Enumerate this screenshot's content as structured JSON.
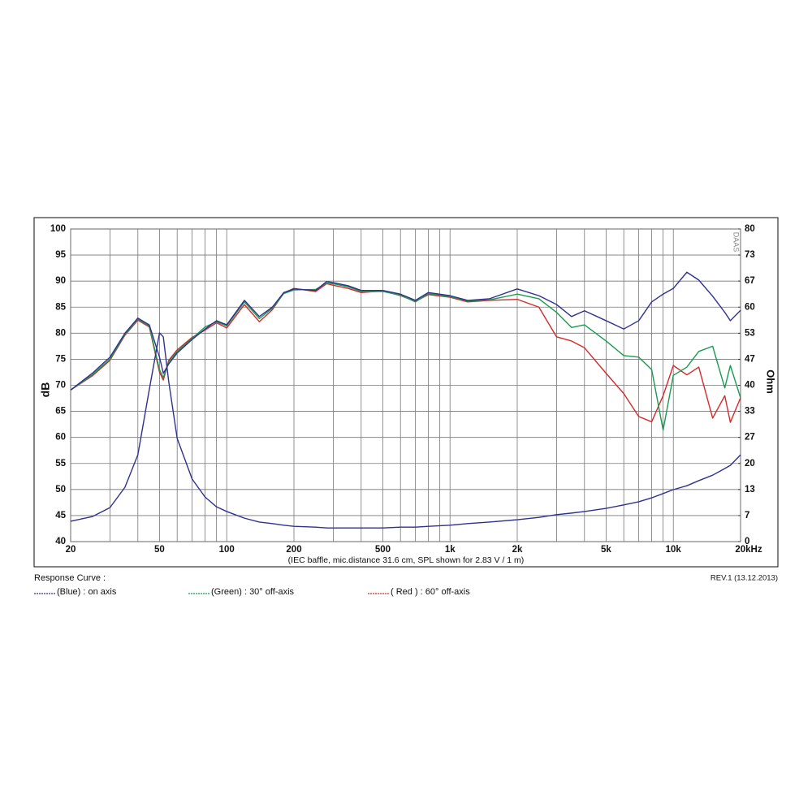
{
  "chart_data": {
    "type": "line",
    "y_label": "dB",
    "y2_label": "Ohm",
    "watermark": "DAAS",
    "note": "(IEC baffle, mic.distance 31.6 cm, SPL shown for 2.83 V / 1 m)",
    "legend_title": "Response Curve :",
    "revision": "REV.1 (13.12.2013)",
    "xscale": "log",
    "grid": true,
    "xlim": [
      20,
      20000
    ],
    "xticks": [
      20,
      50,
      100,
      200,
      500,
      {
        "value": 1000,
        "label": "1k"
      },
      {
        "value": 2000,
        "label": "2k"
      },
      {
        "value": 5000,
        "label": "5k"
      },
      {
        "value": 10000,
        "label": "10k"
      },
      {
        "value": 20000,
        "label": "20kHz"
      }
    ],
    "xgrid": [
      30,
      40,
      60,
      70,
      80,
      90,
      300,
      400,
      600,
      700,
      800,
      900,
      3000,
      4000,
      6000,
      7000,
      8000,
      9000
    ],
    "ylim": [
      40,
      100
    ],
    "yticks": [
      40,
      45,
      50,
      55,
      60,
      65,
      70,
      75,
      80,
      85,
      90,
      95,
      100
    ],
    "y2lim": [
      0,
      80
    ],
    "y2ticks": [
      0,
      {
        "value": 6.667,
        "label": "7"
      },
      {
        "value": 13.333,
        "label": "13"
      },
      20,
      {
        "value": 26.667,
        "label": "27"
      },
      {
        "value": 33.333,
        "label": "33"
      },
      40,
      {
        "value": 46.667,
        "label": "47"
      },
      {
        "value": 53.333,
        "label": "53"
      },
      60,
      {
        "value": 66.667,
        "label": "67"
      },
      {
        "value": 73.333,
        "label": "73"
      },
      80
    ],
    "x": [
      20,
      25,
      30,
      35,
      40,
      45,
      50,
      52,
      55,
      60,
      70,
      80,
      90,
      100,
      120,
      140,
      160,
      180,
      200,
      250,
      280,
      300,
      350,
      400,
      500,
      600,
      700,
      800,
      1000,
      1200,
      1500,
      2000,
      2500,
      3000,
      3500,
      4000,
      5000,
      6000,
      7000,
      8000,
      9000,
      10000,
      11500,
      13000,
      15000,
      17000,
      18000,
      20000
    ],
    "series": [
      {
        "name": "(Blue)  : on axis",
        "color": "#2e3192",
        "values": [
          69.1,
          72.3,
          75.4,
          80,
          82.9,
          81.6,
          75.4,
          72.3,
          74.1,
          76.2,
          78.8,
          80.8,
          82.4,
          81.6,
          86.3,
          83.2,
          85,
          87.8,
          88.5,
          88.2,
          89.9,
          89.7,
          89.1,
          88.2,
          88.2,
          87.5,
          86.3,
          87.8,
          87.2,
          86.3,
          86.6,
          88.5,
          87.2,
          85.5,
          83.2,
          84.3,
          82.4,
          80.8,
          82.4,
          86,
          87.5,
          88.6,
          91.7,
          90.2,
          87.1,
          84,
          82.4,
          84.4
        ]
      },
      {
        "name": "(Green) : 30° off-axis",
        "color": "#1a9a50",
        "values": [
          69.1,
          72,
          75,
          79.8,
          82.7,
          81.4,
          73,
          71.5,
          74.5,
          76.5,
          79,
          81.2,
          82.2,
          81.4,
          86,
          82.8,
          84.8,
          87.6,
          88.3,
          88.4,
          89.6,
          89.5,
          88.9,
          88,
          88,
          87.3,
          86,
          87.6,
          87,
          86.2,
          86.4,
          87.5,
          86.6,
          84,
          81.1,
          81.6,
          78.5,
          75.7,
          75.4,
          73,
          61.4,
          71.9,
          73.5,
          76.5,
          77.5,
          69.5,
          73.8,
          67.6
        ]
      },
      {
        "name": "( Red ) : 60° off-axis",
        "color": "#d42a2a",
        "values": [
          69.1,
          71.8,
          74.8,
          79.6,
          82.5,
          81.2,
          72.5,
          71,
          74.8,
          76.8,
          79.2,
          80.6,
          82,
          81,
          85.5,
          82.2,
          84.5,
          87.7,
          88.6,
          88,
          89.5,
          89.2,
          88.6,
          87.8,
          88.1,
          87.2,
          86.1,
          87.4,
          86.9,
          86,
          86.3,
          86.5,
          85,
          79.3,
          78.5,
          77.2,
          72.3,
          68.4,
          64,
          63,
          68,
          73.8,
          72,
          73.5,
          63.7,
          68,
          62.9,
          67.6
        ]
      },
      {
        "color": "#2e3192",
        "axis": "y2",
        "values": [
          5.2,
          6.4,
          8.7,
          13.9,
          22.2,
          38.9,
          53.4,
          52.4,
          40.9,
          26.4,
          16,
          11.4,
          8.9,
          7.7,
          6,
          5,
          4.6,
          4.2,
          3.9,
          3.7,
          3.5,
          3.5,
          3.5,
          3.5,
          3.5,
          3.7,
          3.7,
          3.9,
          4.2,
          4.6,
          5,
          5.6,
          6.2,
          6.9,
          7.3,
          7.7,
          8.5,
          9.4,
          10.2,
          11.2,
          12.3,
          13.3,
          14.3,
          15.6,
          17,
          18.7,
          19.5,
          22.2
        ]
      }
    ]
  }
}
